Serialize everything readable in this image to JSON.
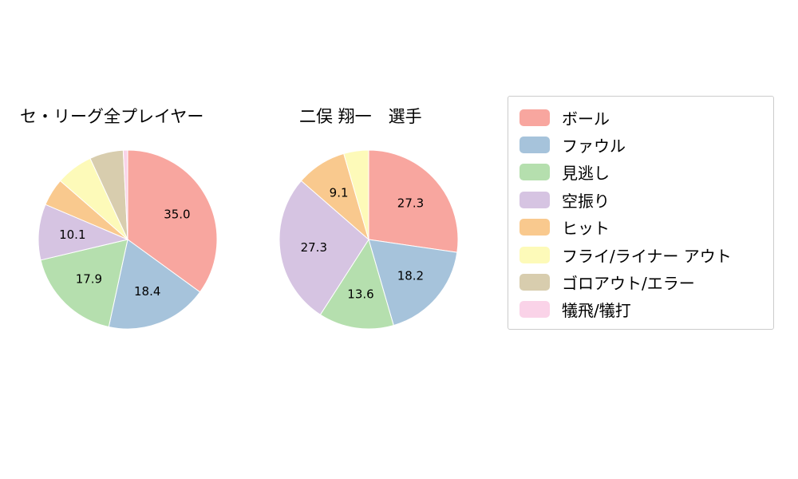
{
  "page": {
    "background_color": "#ffffff"
  },
  "legend": {
    "items": [
      {
        "label": "ボール",
        "color": "#F8A69F"
      },
      {
        "label": "ファウル",
        "color": "#A6C3DB"
      },
      {
        "label": "見逃し",
        "color": "#B5DFAE"
      },
      {
        "label": "空振り",
        "color": "#D6C4E2"
      },
      {
        "label": "ヒット",
        "color": "#F9C98E"
      },
      {
        "label": "フライ/ライナー アウト",
        "color": "#FDFAB9"
      },
      {
        "label": "ゴロアウト/エラー",
        "color": "#D8CDAE"
      },
      {
        "label": "犠飛/犠打",
        "color": "#FAD3E8"
      }
    ]
  },
  "chart_data": [
    {
      "type": "pie",
      "title": "セ・リーグ全プレイヤー",
      "categories": [
        "ボール",
        "ファウル",
        "見逃し",
        "空振り",
        "ヒット",
        "フライ/ライナー アウト",
        "ゴロアウト/エラー",
        "犠飛/犠打"
      ],
      "values": [
        35.0,
        18.4,
        17.9,
        10.1,
        5.0,
        6.7,
        6.1,
        0.8
      ],
      "labels": [
        "35.0",
        "18.4",
        "17.9",
        "10.1",
        "",
        "",
        "",
        ""
      ],
      "colors": [
        "#F8A69F",
        "#A6C3DB",
        "#B5DFAE",
        "#D6C4E2",
        "#F9C98E",
        "#FDFAB9",
        "#D8CDAE",
        "#FAD3E8"
      ],
      "start_angle_deg": 90,
      "direction": "clockwise",
      "legend_position": "right"
    },
    {
      "type": "pie",
      "title": "二俣 翔一　選手",
      "categories": [
        "ボール",
        "ファウル",
        "見逃し",
        "空振り",
        "ヒット",
        "フライ/ライナー アウト",
        "ゴロアウト/エラー",
        "犠飛/犠打"
      ],
      "values": [
        27.3,
        18.2,
        13.6,
        27.3,
        9.1,
        4.5,
        0,
        0
      ],
      "labels": [
        "27.3",
        "18.2",
        "13.6",
        "27.3",
        "9.1",
        "",
        "",
        ""
      ],
      "colors": [
        "#F8A69F",
        "#A6C3DB",
        "#B5DFAE",
        "#D6C4E2",
        "#F9C98E",
        "#FDFAB9",
        "#D8CDAE",
        "#FAD3E8"
      ],
      "start_angle_deg": 90,
      "direction": "clockwise",
      "legend_position": "right"
    }
  ]
}
